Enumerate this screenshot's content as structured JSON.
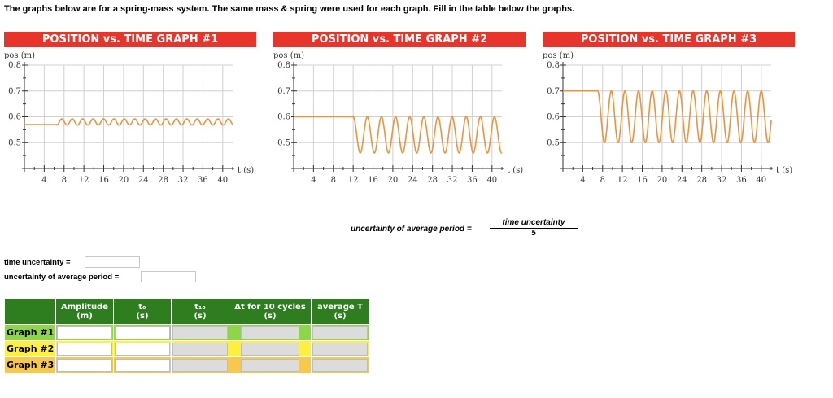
{
  "instructions": "The graphs below are for a spring-mass system. The same mass & spring were used for each graph. Fill in the table below the graphs.",
  "graph_style": {
    "line_color": "#f0923a",
    "grid_color": "#d0d0d0",
    "title_bg": "#e8342a"
  },
  "chart_data": [
    {
      "type": "line",
      "title": "POSITION vs. TIME GRAPH #1",
      "xlabel": "t (s)",
      "ylabel": "pos (m)",
      "xlim": [
        0,
        42
      ],
      "ylim": [
        0.4,
        0.8
      ],
      "xticks": [
        4,
        8,
        12,
        16,
        20,
        24,
        28,
        32,
        36,
        40
      ],
      "yticks": [
        "0.8",
        "0.7",
        "0.6",
        "0.5"
      ],
      "grid": true,
      "series": [
        {
          "equilibrium": 0.58,
          "start_value": 0.57,
          "amplitude": 0.012,
          "t0": 6.5,
          "period": 2.1
        }
      ]
    },
    {
      "type": "line",
      "title": "POSITION vs. TIME GRAPH #2",
      "xlabel": "t (s)",
      "ylabel": "pos (m)",
      "xlim": [
        0,
        42
      ],
      "ylim": [
        0.4,
        0.8
      ],
      "xticks": [
        4,
        8,
        12,
        16,
        20,
        24,
        28,
        32,
        36,
        40
      ],
      "yticks": [
        "0.8",
        "0.7",
        "0.6",
        "0.5"
      ],
      "grid": true,
      "series": [
        {
          "equilibrium": 0.53,
          "start_value": 0.6,
          "amplitude": 0.07,
          "t0": 12,
          "period": 2.85
        }
      ]
    },
    {
      "type": "line",
      "title": "POSITION vs. TIME GRAPH #3",
      "xlabel": "t (s)",
      "ylabel": "pos (m)",
      "xlim": [
        0,
        42
      ],
      "ylim": [
        0.4,
        0.8
      ],
      "xticks": [
        4,
        8,
        12,
        16,
        20,
        24,
        28,
        32,
        36,
        40
      ],
      "yticks": [
        "0.8",
        "0.7",
        "0.6",
        "0.5"
      ],
      "grid": true,
      "series": [
        {
          "equilibrium": 0.6,
          "start_value": 0.7,
          "amplitude": 0.1,
          "t0": 7,
          "period": 2.75
        }
      ]
    }
  ],
  "formula": {
    "lhs": "uncertainty of average period =",
    "numerator": "time uncertainty",
    "denominator": "5"
  },
  "fields": {
    "time_uncertainty_label": "time uncertainty =",
    "time_uncertainty_value": "",
    "uncertainty_avg_period_label": "uncertainty of average period =",
    "uncertainty_avg_period_value": ""
  },
  "table": {
    "headers": [
      {
        "line1": "Amplitude",
        "line2": "(m)"
      },
      {
        "line1": "t₀",
        "line2": "(s)"
      },
      {
        "line1": "t₁₀",
        "line2": "(s)"
      },
      {
        "line1": "Δt for 10 cycles",
        "line2": "(s)"
      },
      {
        "line1": "average T",
        "line2": "(s)"
      }
    ],
    "rows": [
      {
        "label": "Graph #1",
        "label_color": "#8cd648"
      },
      {
        "label": "Graph #2",
        "label_color": "#fef03c"
      },
      {
        "label": "Graph #3",
        "label_color": "#f7c84a"
      }
    ]
  }
}
